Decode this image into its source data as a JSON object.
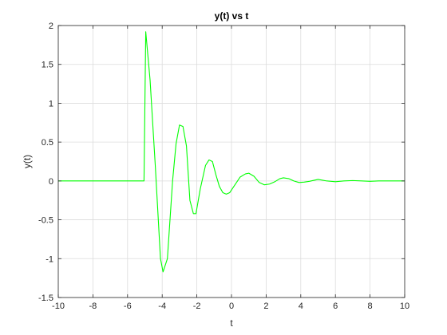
{
  "chart_data": {
    "type": "line",
    "title": "y(t) vs t",
    "xlabel": "t",
    "ylabel": "y(t)",
    "xlim": [
      -10,
      10
    ],
    "ylim": [
      -1.5,
      2
    ],
    "xticks": [
      -10,
      -8,
      -6,
      -4,
      -2,
      0,
      2,
      4,
      6,
      8,
      10
    ],
    "yticks": [
      -1.5,
      -1,
      -0.5,
      0,
      0.5,
      1,
      1.5,
      2
    ],
    "xtick_labels": [
      "-10",
      "-8",
      "-6",
      "-4",
      "-2",
      "0",
      "2",
      "4",
      "6",
      "8",
      "10"
    ],
    "ytick_labels": [
      "-1.5",
      "-1",
      "-0.5",
      "0",
      "0.5",
      "1",
      "1.5",
      "2"
    ],
    "grid": true,
    "series_color": "#00ff00",
    "series": [
      {
        "x": [
          -10,
          -6,
          -5.05,
          -4.95,
          -4.7,
          -4.4,
          -4.1,
          -3.95,
          -3.7,
          -3.4,
          -3.2,
          -3.0,
          -2.8,
          -2.6,
          -2.4,
          -2.2,
          -2.05,
          -1.8,
          -1.5,
          -1.3,
          -1.1,
          -0.9,
          -0.7,
          -0.5,
          -0.3,
          -0.1,
          0.2,
          0.5,
          0.8,
          1.0,
          1.3,
          1.6,
          1.9,
          2.2,
          2.5,
          2.8,
          3.0,
          3.3,
          3.6,
          3.9,
          4.2,
          4.5,
          5.0,
          5.5,
          6.0,
          6.5,
          7.0,
          7.5,
          8.0,
          8.5,
          9.0,
          10
        ],
        "y": [
          0,
          0,
          0,
          1.92,
          1.3,
          0.2,
          -1.0,
          -1.17,
          -1.0,
          0.0,
          0.48,
          0.72,
          0.7,
          0.45,
          -0.25,
          -0.42,
          -0.42,
          -0.1,
          0.2,
          0.27,
          0.25,
          0.08,
          -0.07,
          -0.15,
          -0.17,
          -0.15,
          -0.05,
          0.05,
          0.09,
          0.1,
          0.06,
          -0.02,
          -0.05,
          -0.04,
          -0.01,
          0.03,
          0.04,
          0.03,
          0.0,
          -0.02,
          -0.015,
          -0.005,
          0.02,
          0.0,
          -0.01,
          0.0,
          0.005,
          0.0,
          -0.005,
          0.0,
          0.0,
          0.0
        ]
      }
    ]
  }
}
